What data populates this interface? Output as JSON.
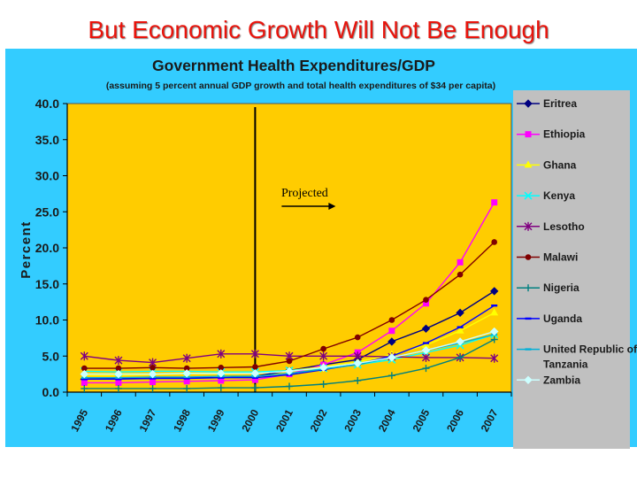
{
  "slide": {
    "title": "But Economic Growth Will Not Be Enough"
  },
  "colors": {
    "background": "#33ccff",
    "plot": "#ffcc00",
    "legend_bg": "#c0c0c0",
    "title_red": "#e8140c"
  },
  "chart_data": {
    "type": "line",
    "title": "Government Health Expenditures/GDP",
    "subtitle": "(assuming 5 percent annual GDP growth and total health expenditures of $34 per capita)",
    "ylabel": "Percent",
    "xlabel": "",
    "ylim": [
      0,
      40
    ],
    "yticks": [
      "0.0",
      "5.0",
      "10.0",
      "15.0",
      "20.0",
      "25.0",
      "30.0",
      "35.0",
      "40.0"
    ],
    "x": [
      "1995",
      "1996",
      "1997",
      "1998",
      "1999",
      "2000",
      "2001",
      "2002",
      "2003",
      "2004",
      "2005",
      "2006",
      "2007"
    ],
    "annotation": {
      "text": "Projected",
      "divider_year": "2000"
    },
    "series": [
      {
        "name": "Eritrea",
        "color": "#000080",
        "marker": "diamond",
        "values": [
          1.8,
          1.9,
          1.9,
          2.0,
          2.0,
          2.2,
          3.0,
          3.8,
          4.5,
          7.0,
          8.8,
          11.0,
          14.0
        ]
      },
      {
        "name": "Ethiopia",
        "color": "#ff00ff",
        "marker": "square",
        "values": [
          1.3,
          1.3,
          1.4,
          1.5,
          1.6,
          1.7,
          2.5,
          3.8,
          5.5,
          8.5,
          12.3,
          18.0,
          26.3
        ]
      },
      {
        "name": "Ghana",
        "color": "#ffff00",
        "marker": "triangle",
        "values": [
          2.3,
          2.3,
          2.4,
          2.5,
          2.5,
          2.6,
          3.0,
          3.5,
          4.2,
          5.2,
          6.5,
          8.5,
          11.0
        ]
      },
      {
        "name": "Kenya",
        "color": "#00ffff",
        "marker": "x",
        "values": [
          2.9,
          2.8,
          2.9,
          2.9,
          2.8,
          2.8,
          3.0,
          3.3,
          3.8,
          4.5,
          5.5,
          6.5,
          8.0
        ]
      },
      {
        "name": "Lesotho",
        "color": "#800080",
        "marker": "asterisk",
        "values": [
          5.0,
          4.4,
          4.1,
          4.7,
          5.3,
          5.3,
          5.0,
          5.0,
          5.0,
          4.9,
          4.8,
          4.8,
          4.7
        ]
      },
      {
        "name": "Malawi",
        "color": "#800000",
        "marker": "circle",
        "values": [
          3.3,
          3.3,
          3.4,
          3.3,
          3.4,
          3.5,
          4.3,
          6.0,
          7.6,
          10.0,
          12.8,
          16.3,
          20.8
        ]
      },
      {
        "name": "Nigeria",
        "color": "#008080",
        "marker": "plus",
        "values": [
          0.5,
          0.5,
          0.5,
          0.5,
          0.6,
          0.6,
          0.8,
          1.1,
          1.6,
          2.3,
          3.3,
          4.8,
          7.3
        ]
      },
      {
        "name": "Uganda",
        "color": "#0000ff",
        "marker": "dash",
        "values": [
          1.8,
          1.8,
          1.9,
          1.9,
          2.0,
          2.0,
          2.4,
          3.1,
          3.9,
          5.0,
          6.8,
          9.0,
          12.0
        ]
      },
      {
        "name": "United Republic of Tanzania",
        "color": "#00b0d8",
        "marker": "dash",
        "values": [
          2.0,
          2.0,
          2.1,
          2.1,
          2.2,
          2.2,
          2.6,
          3.2,
          3.8,
          4.8,
          5.8,
          6.8,
          8.0
        ]
      },
      {
        "name": "Zambia",
        "color": "#ccffff",
        "marker": "diamond",
        "values": [
          2.5,
          2.5,
          2.5,
          2.6,
          2.6,
          2.6,
          2.9,
          3.4,
          4.0,
          4.8,
          5.8,
          7.0,
          8.4
        ]
      }
    ]
  }
}
